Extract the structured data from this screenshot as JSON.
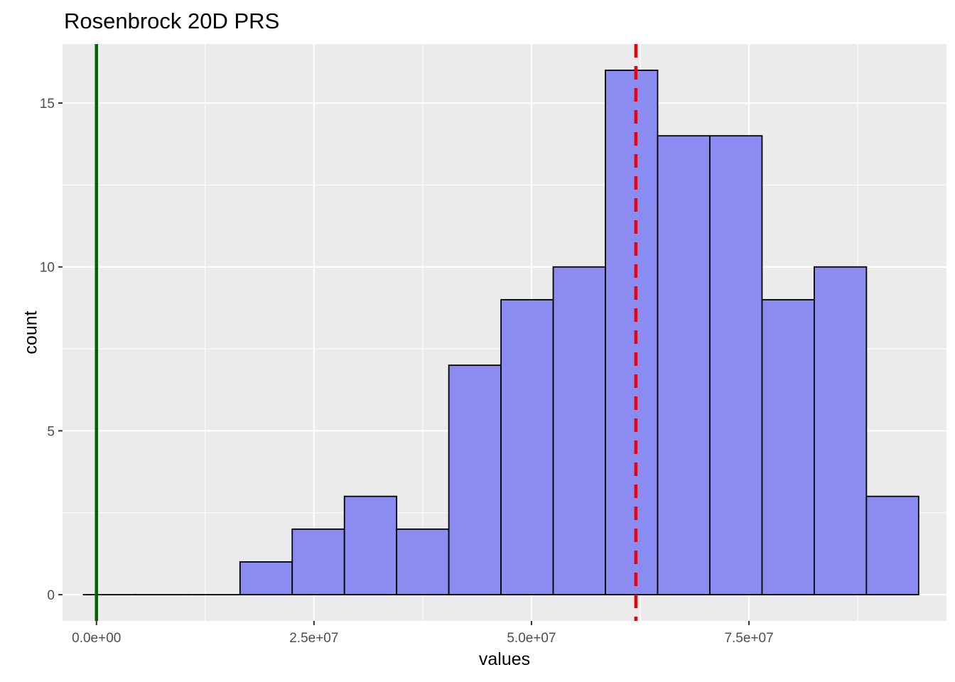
{
  "chart_data": {
    "type": "bar",
    "title": "Rosenbrock 20D PRS",
    "xlabel": "values",
    "ylabel": "count",
    "x_ticks": [
      {
        "value": 0,
        "label": "0.0e+00"
      },
      {
        "value": 25000000,
        "label": "2.5e+07"
      },
      {
        "value": 50000000,
        "label": "5.0e+07"
      },
      {
        "value": 75000000,
        "label": "7.5e+07"
      }
    ],
    "y_ticks": [
      {
        "value": 0,
        "label": "0"
      },
      {
        "value": 5,
        "label": "5"
      },
      {
        "value": 10,
        "label": "10"
      },
      {
        "value": 15,
        "label": "15"
      }
    ],
    "xlim": [
      -3900000,
      97700000
    ],
    "ylim": [
      -0.8,
      16.8
    ],
    "bin_width": 6000000,
    "bins_start": -1500000,
    "counts": [
      0,
      0,
      0,
      1,
      2,
      3,
      2,
      7,
      9,
      10,
      16,
      14,
      14,
      9,
      10,
      3
    ],
    "bar_fill": "#8b8cf2",
    "bar_outline": "#000000",
    "panel_background": "#ebebeb",
    "reference_lines": [
      {
        "x": 0,
        "color": "#006400",
        "style": "solid"
      },
      {
        "x": 62000000,
        "color": "#e8000b",
        "style": "dashed"
      }
    ],
    "grid": true,
    "legend": "none"
  }
}
